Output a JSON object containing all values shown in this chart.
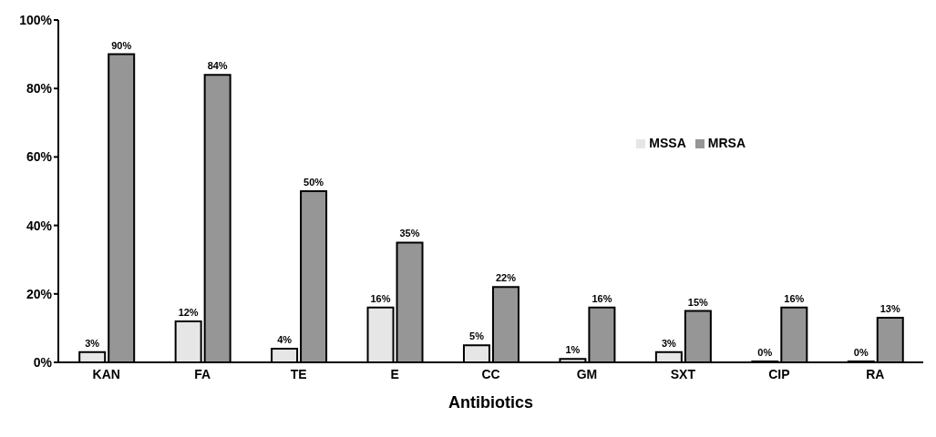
{
  "chart_data": {
    "type": "bar",
    "xlabel": "Antibiotics",
    "categories": [
      "KAN",
      "FA",
      "TE",
      "E",
      "CC",
      "GM",
      "SXT",
      "CIP",
      "RA"
    ],
    "series": [
      {
        "name": "MSSA",
        "color": "#e6e6e6",
        "values": [
          3,
          12,
          4,
          16,
          5,
          1,
          3,
          0,
          0
        ],
        "value_labels": [
          "3%",
          "12%",
          "4%",
          "16%",
          "5%",
          "1%",
          "3%",
          "0%",
          "0%"
        ]
      },
      {
        "name": "MRSA",
        "color": "#969696",
        "values": [
          90,
          84,
          50,
          35,
          22,
          16,
          15,
          16,
          13
        ],
        "value_labels": [
          "90%",
          "84%",
          "50%",
          "35%",
          "22%",
          "16%",
          "15%",
          "16%",
          "13%"
        ]
      }
    ],
    "ylim": [
      0,
      100
    ],
    "yticks": [
      {
        "value": 0,
        "label": "0%"
      },
      {
        "value": 20,
        "label": "20%"
      },
      {
        "value": 40,
        "label": "40%"
      },
      {
        "value": 60,
        "label": "60%"
      },
      {
        "value": 80,
        "label": "80%"
      },
      {
        "value": 100,
        "label": "100%"
      }
    ],
    "grid": false,
    "legend": "top right"
  }
}
